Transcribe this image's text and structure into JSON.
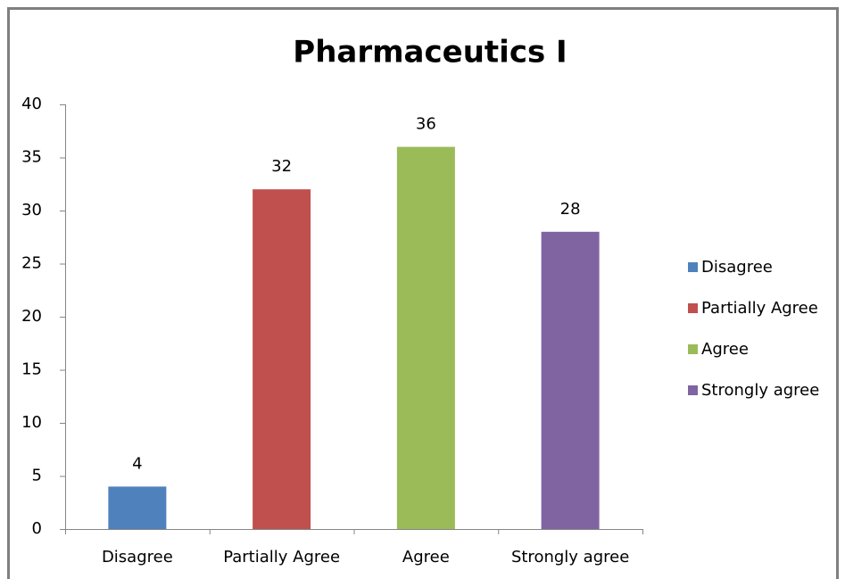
{
  "chart_data": {
    "type": "bar",
    "title": "Pharmaceutics I",
    "categories": [
      "Disagree",
      "Partially Agree",
      "Agree",
      "Strongly agree"
    ],
    "values": [
      4,
      32,
      36,
      28
    ],
    "colors": [
      "#4f81bd",
      "#c0504d",
      "#9bbb59",
      "#8064a2"
    ],
    "ylim": [
      0,
      40
    ],
    "yticks": [
      0,
      5,
      10,
      15,
      20,
      25,
      30,
      35,
      40
    ],
    "grid": false,
    "legend": "right"
  }
}
